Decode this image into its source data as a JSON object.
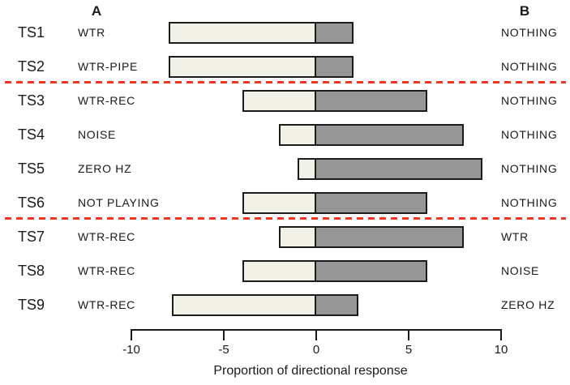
{
  "chart_data": {
    "type": "bar",
    "orientation": "horizontal",
    "diverging": true,
    "stacked": true,
    "title": "",
    "xlabel": "Proportion of directional response",
    "xlim": [
      -10,
      10
    ],
    "x_ticks": [
      -10,
      -5,
      0,
      5,
      10
    ],
    "headers": {
      "a": "A",
      "b": "B"
    },
    "columns": [
      "trial",
      "stimulus_a",
      "toward_a",
      "toward_b",
      "stimulus_b"
    ],
    "rows": [
      {
        "trial": "TS1",
        "stimulus_a": "WTR",
        "toward_a": -8,
        "toward_b": 2,
        "stimulus_b": "NOTHING"
      },
      {
        "trial": "TS2",
        "stimulus_a": "WTR-PIPE",
        "toward_a": -8,
        "toward_b": 2,
        "stimulus_b": "NOTHING"
      },
      {
        "trial": "TS3",
        "stimulus_a": "WTR-REC",
        "toward_a": -4,
        "toward_b": 6,
        "stimulus_b": "NOTHING"
      },
      {
        "trial": "TS4",
        "stimulus_a": "NOISE",
        "toward_a": -2,
        "toward_b": 8,
        "stimulus_b": "NOTHING"
      },
      {
        "trial": "TS5",
        "stimulus_a": "ZERO HZ",
        "toward_a": -1,
        "toward_b": 9,
        "stimulus_b": "NOTHING"
      },
      {
        "trial": "TS6",
        "stimulus_a": "NOT PLAYING",
        "toward_a": -4,
        "toward_b": 6,
        "stimulus_b": "NOTHING"
      },
      {
        "trial": "TS7",
        "stimulus_a": "WTR-REC",
        "toward_a": -2,
        "toward_b": 8,
        "stimulus_b": "WTR"
      },
      {
        "trial": "TS8",
        "stimulus_a": "WTR-REC",
        "toward_a": -4,
        "toward_b": 6,
        "stimulus_b": "NOISE"
      },
      {
        "trial": "TS9",
        "stimulus_a": "WTR-REC",
        "toward_a": -7.8,
        "toward_b": 2.3,
        "stimulus_b": "ZERO HZ"
      }
    ],
    "group_dividers_after_rows": [
      2,
      6
    ],
    "legend": null,
    "grid": false,
    "colors": {
      "toward_a_fill": "#f2f1e8",
      "toward_b_fill": "#969696",
      "bar_border": "#1c1c1c",
      "divider_red": "#f23822",
      "text": "#1a1a1a"
    }
  }
}
